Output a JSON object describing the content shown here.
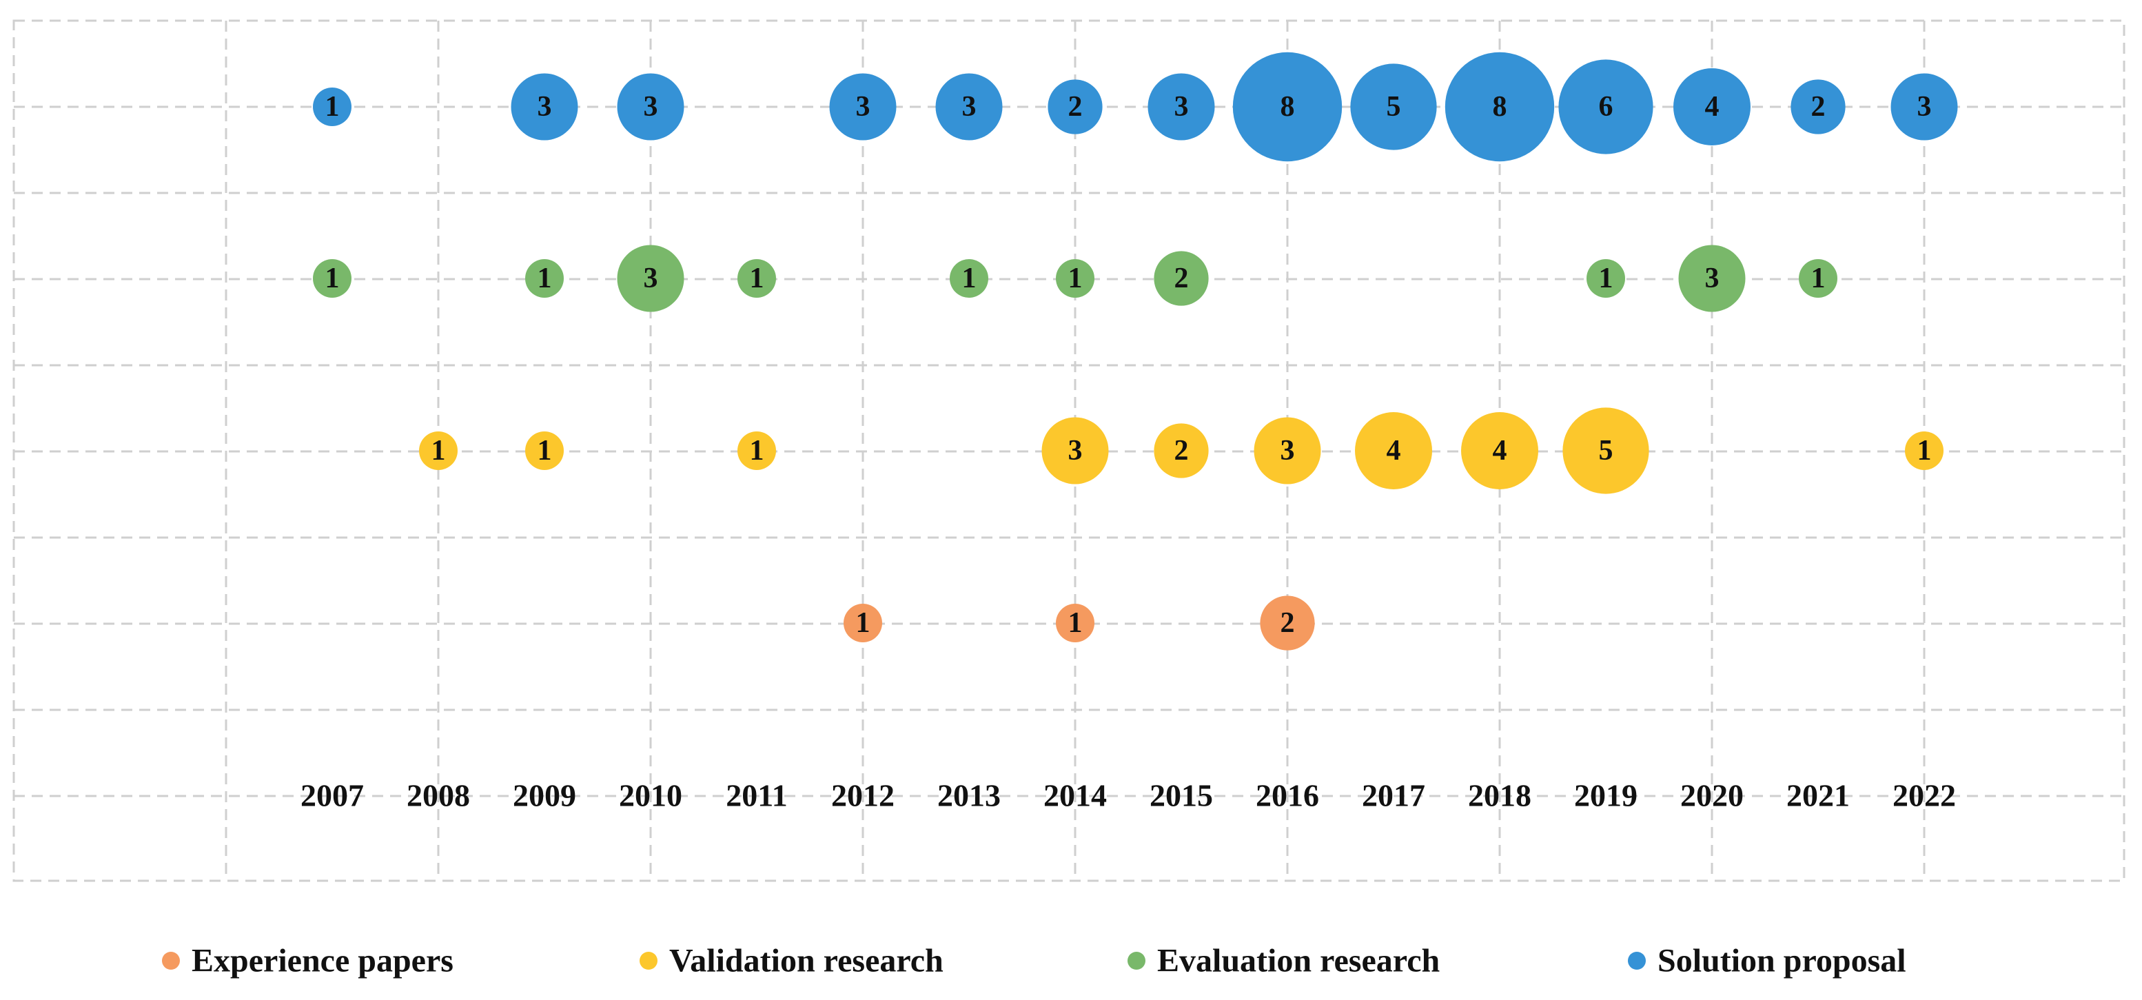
{
  "chart_data": {
    "type": "bubble",
    "categories": [
      "2007",
      "2008",
      "2009",
      "2010",
      "2011",
      "2012",
      "2013",
      "2014",
      "2015",
      "2016",
      "2017",
      "2018",
      "2019",
      "2020",
      "2021",
      "2022"
    ],
    "series": [
      {
        "name": "Experience papers",
        "color": "#f59a5f",
        "values": [
          null,
          null,
          null,
          null,
          null,
          1,
          null,
          1,
          null,
          2,
          null,
          null,
          null,
          null,
          null,
          null
        ]
      },
      {
        "name": "Validation research",
        "color": "#fcc72c",
        "values": [
          null,
          1,
          1,
          null,
          1,
          null,
          null,
          3,
          2,
          3,
          4,
          4,
          5,
          null,
          null,
          1
        ]
      },
      {
        "name": "Evaluation research",
        "color": "#79b86a",
        "values": [
          1,
          null,
          1,
          3,
          1,
          null,
          1,
          1,
          2,
          null,
          null,
          null,
          1,
          3,
          1,
          null
        ]
      },
      {
        "name": "Solution proposal",
        "color": "#3592d6",
        "values": [
          1,
          null,
          3,
          3,
          null,
          3,
          3,
          2,
          3,
          8,
          5,
          8,
          6,
          4,
          2,
          3
        ]
      }
    ],
    "grid": true,
    "legend": "bottom"
  }
}
